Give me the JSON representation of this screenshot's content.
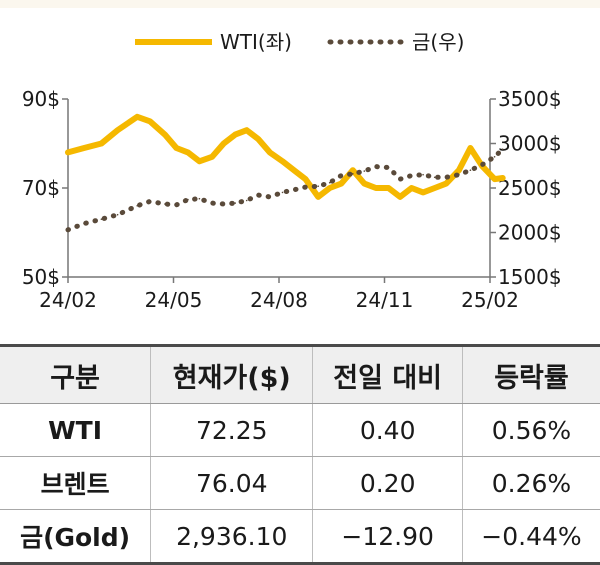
{
  "chart_data": {
    "type": "line",
    "x_ticks": [
      "24/02",
      "24/05",
      "24/08",
      "24/11",
      "25/02"
    ],
    "y_left": {
      "ticks": [
        "90$",
        "70$",
        "50$"
      ],
      "range": [
        50,
        90
      ]
    },
    "y_right": {
      "ticks": [
        "3500$",
        "3000$",
        "2500$",
        "2000$",
        "1500$"
      ],
      "range": [
        1500,
        3500
      ]
    },
    "series": [
      {
        "name": "WTI(좌)",
        "axis": "left",
        "color": "#f5b800",
        "style": "solid",
        "x": [
          "2024-02-01",
          "2024-02-15",
          "2024-03-01",
          "2024-03-15",
          "2024-04-01",
          "2024-04-12",
          "2024-04-25",
          "2024-05-05",
          "2024-05-15",
          "2024-05-25",
          "2024-06-05",
          "2024-06-15",
          "2024-06-25",
          "2024-07-05",
          "2024-07-15",
          "2024-07-25",
          "2024-08-05",
          "2024-08-15",
          "2024-08-25",
          "2024-09-05",
          "2024-09-15",
          "2024-09-25",
          "2024-10-05",
          "2024-10-15",
          "2024-10-25",
          "2024-11-05",
          "2024-11-15",
          "2024-11-25",
          "2024-12-05",
          "2024-12-15",
          "2024-12-25",
          "2025-01-05",
          "2025-01-15",
          "2025-01-25",
          "2025-02-05",
          "2025-02-12"
        ],
        "values": [
          78,
          79,
          80,
          83,
          86,
          85,
          82,
          79,
          78,
          76,
          77,
          80,
          82,
          83,
          81,
          78,
          76,
          74,
          72,
          68,
          70,
          71,
          74,
          71,
          70,
          70,
          68,
          70,
          69,
          70,
          71,
          74,
          79,
          75,
          72,
          72.25
        ]
      },
      {
        "name": "금(우)",
        "axis": "right",
        "color": "#5a4a3a",
        "style": "dotted",
        "x": [
          "2024-02-01",
          "2024-02-15",
          "2024-03-01",
          "2024-03-15",
          "2024-04-01",
          "2024-04-12",
          "2024-04-25",
          "2024-05-05",
          "2024-05-15",
          "2024-05-25",
          "2024-06-05",
          "2024-06-15",
          "2024-06-25",
          "2024-07-05",
          "2024-07-15",
          "2024-07-25",
          "2024-08-05",
          "2024-08-15",
          "2024-08-25",
          "2024-09-05",
          "2024-09-15",
          "2024-09-25",
          "2024-10-05",
          "2024-10-15",
          "2024-10-25",
          "2024-11-05",
          "2024-11-15",
          "2024-11-25",
          "2024-12-05",
          "2024-12-15",
          "2024-12-25",
          "2025-01-05",
          "2025-01-15",
          "2025-01-25",
          "2025-02-05",
          "2025-02-12"
        ],
        "values": [
          2030,
          2100,
          2150,
          2200,
          2300,
          2350,
          2320,
          2310,
          2370,
          2380,
          2330,
          2320,
          2330,
          2360,
          2420,
          2400,
          2450,
          2480,
          2510,
          2520,
          2560,
          2640,
          2660,
          2690,
          2740,
          2730,
          2600,
          2640,
          2650,
          2620,
          2620,
          2650,
          2700,
          2760,
          2850,
          2936.1
        ]
      }
    ],
    "legend": "top-center",
    "grid": false
  },
  "table": {
    "headers": [
      "구분",
      "현재가($)",
      "전일 대비",
      "등락률"
    ],
    "rows": [
      [
        "WTI",
        "72.25",
        "0.40",
        "0.56%"
      ],
      [
        "브렌트",
        "76.04",
        "0.20",
        "0.26%"
      ],
      [
        "금(Gold)",
        "2,936.10",
        "−12.90",
        "−0.44%"
      ]
    ]
  }
}
